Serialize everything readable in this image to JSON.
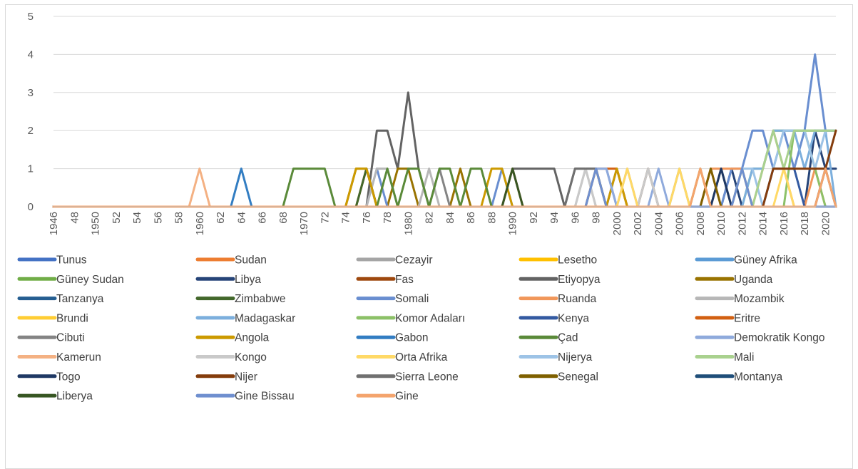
{
  "chart_data": {
    "type": "line",
    "title": "",
    "xlabel": "",
    "ylabel": "",
    "ylim": [
      0,
      5
    ],
    "yticks": [
      "0",
      "1",
      "2",
      "3",
      "4",
      "5"
    ],
    "grid": "horizontal",
    "legend_position": "bottom",
    "x_tick_labels": [
      "1946",
      "48",
      "1950",
      "52",
      "54",
      "56",
      "58",
      "1960",
      "62",
      "64",
      "66",
      "68",
      "1970",
      "72",
      "74",
      "76",
      "78",
      "1980",
      "82",
      "84",
      "86",
      "88",
      "1990",
      "92",
      "94",
      "96",
      "98",
      "2000",
      "2002",
      "2004",
      "2006",
      "2008",
      "2010",
      "2012",
      "2014",
      "2016",
      "2018",
      "2020"
    ],
    "x_years_start": 1946,
    "x_years_end": 2021,
    "series": [
      {
        "name": "Tunus",
        "color": "#4472c4",
        "points": []
      },
      {
        "name": "Sudan",
        "color": "#ed7d31",
        "points": [
          [
            2002,
            0
          ],
          [
            2003,
            1
          ],
          [
            2004,
            0
          ],
          [
            2008,
            0
          ],
          [
            2009,
            1
          ],
          [
            2012,
            1
          ],
          [
            2013,
            0
          ]
        ]
      },
      {
        "name": "Cezayir",
        "color": "#a5a5a5",
        "points": [
          [
            1989,
            0
          ],
          [
            1990,
            1
          ],
          [
            1991,
            0
          ],
          [
            1997,
            0
          ],
          [
            1998,
            1
          ],
          [
            2001,
            1
          ],
          [
            2002,
            0
          ]
        ]
      },
      {
        "name": "Lesetho",
        "color": "#ffc000",
        "points": [
          [
            1997,
            0
          ],
          [
            1998,
            1
          ],
          [
            1999,
            0
          ]
        ]
      },
      {
        "name": "Güney Afrika",
        "color": "#5b9bd5",
        "points": []
      },
      {
        "name": "Güney Sudan",
        "color": "#70ad47",
        "points": [
          [
            2012,
            0
          ],
          [
            2013,
            1
          ],
          [
            2014,
            1
          ],
          [
            2015,
            2
          ],
          [
            2016,
            2
          ],
          [
            2017,
            2
          ],
          [
            2018,
            2
          ],
          [
            2019,
            2
          ],
          [
            2020,
            2
          ],
          [
            2021,
            2
          ]
        ]
      },
      {
        "name": "Libya",
        "color": "#264478",
        "points": [
          [
            2010,
            0
          ],
          [
            2011,
            1
          ],
          [
            2012,
            0
          ],
          [
            2018,
            0
          ],
          [
            2019,
            2
          ],
          [
            2020,
            1
          ],
          [
            2021,
            1
          ]
        ]
      },
      {
        "name": "Fas",
        "color": "#9e480e",
        "points": [
          [
            1975,
            0
          ],
          [
            1976,
            1
          ],
          [
            1977,
            0
          ]
        ]
      },
      {
        "name": "Etiyopya",
        "color": "#636363",
        "points": [
          [
            1976,
            0
          ],
          [
            1977,
            2
          ],
          [
            1978,
            2
          ],
          [
            1979,
            1
          ],
          [
            1980,
            3
          ],
          [
            1981,
            1
          ],
          [
            1990,
            1
          ],
          [
            1991,
            1
          ],
          [
            1992,
            1
          ],
          [
            1993,
            1
          ],
          [
            1994,
            1
          ],
          [
            1995,
            0
          ],
          [
            1996,
            1
          ],
          [
            1997,
            1
          ],
          [
            1998,
            1
          ],
          [
            2000,
            1
          ],
          [
            2001,
            0
          ],
          [
            2019,
            0
          ],
          [
            2020,
            1
          ],
          [
            2021,
            0
          ]
        ]
      },
      {
        "name": "Uganda",
        "color": "#997300",
        "points": [
          [
            1974,
            0
          ],
          [
            1975,
            1
          ],
          [
            1976,
            1
          ],
          [
            1979,
            1
          ],
          [
            1980,
            1
          ],
          [
            1985,
            1
          ],
          [
            1986,
            0
          ],
          [
            2007,
            0
          ],
          [
            2008,
            1
          ],
          [
            2010,
            1
          ],
          [
            2011,
            0
          ]
        ]
      },
      {
        "name": "Tanzanya",
        "color": "#255e91",
        "points": []
      },
      {
        "name": "Zimbabwe",
        "color": "#43682b",
        "points": [
          [
            1975,
            0
          ],
          [
            1976,
            1
          ],
          [
            1977,
            0
          ]
        ]
      },
      {
        "name": "Somali",
        "color": "#698ed0",
        "points": [
          [
            1976,
            0
          ],
          [
            1977,
            1
          ],
          [
            1978,
            0
          ],
          [
            1988,
            0
          ],
          [
            1989,
            1
          ],
          [
            1990,
            0
          ],
          [
            1997,
            0
          ],
          [
            1998,
            1
          ],
          [
            1999,
            1
          ],
          [
            2000,
            0
          ],
          [
            2010,
            0
          ],
          [
            2011,
            1
          ],
          [
            2012,
            1
          ],
          [
            2013,
            2
          ],
          [
            2014,
            2
          ],
          [
            2015,
            1
          ],
          [
            2016,
            2
          ],
          [
            2017,
            1
          ],
          [
            2018,
            2
          ],
          [
            2019,
            4
          ],
          [
            2020,
            2
          ],
          [
            2021,
            2
          ]
        ]
      },
      {
        "name": "Ruanda",
        "color": "#f1975a",
        "points": [
          [
            1989,
            0
          ],
          [
            1990,
            1
          ],
          [
            1991,
            0
          ],
          [
            2008,
            0
          ],
          [
            2009,
            1
          ],
          [
            2010,
            1
          ],
          [
            2011,
            1
          ],
          [
            2012,
            1
          ],
          [
            2013,
            0
          ],
          [
            2014,
            1
          ],
          [
            2015,
            2
          ],
          [
            2016,
            1
          ],
          [
            2017,
            0
          ],
          [
            2019,
            1
          ],
          [
            2020,
            0
          ]
        ]
      },
      {
        "name": "Mozambik",
        "color": "#b7b7b7",
        "points": [
          [
            1976,
            0
          ],
          [
            1977,
            1
          ],
          [
            1978,
            1
          ],
          [
            1982,
            1
          ],
          [
            1983,
            0
          ],
          [
            1996,
            0
          ],
          [
            1997,
            1
          ],
          [
            1998,
            0
          ]
        ]
      },
      {
        "name": "Brundi",
        "color": "#ffcd33",
        "points": [
          [
            1997,
            0
          ],
          [
            1998,
            1
          ],
          [
            1999,
            0
          ],
          [
            2005,
            0
          ],
          [
            2006,
            1
          ],
          [
            2007,
            0
          ]
        ]
      },
      {
        "name": "Madagaskar",
        "color": "#7cafdd",
        "points": [
          [
            2012,
            0
          ],
          [
            2013,
            1
          ],
          [
            2014,
            1
          ],
          [
            2015,
            2
          ],
          [
            2016,
            2
          ],
          [
            2017,
            2
          ],
          [
            2018,
            1
          ],
          [
            2019,
            2
          ],
          [
            2020,
            2
          ]
        ]
      },
      {
        "name": "Komor Adaları",
        "color": "#8cc168",
        "points": [
          [
            2016,
            0
          ],
          [
            2017,
            2
          ],
          [
            2018,
            2
          ],
          [
            2019,
            1
          ]
        ]
      },
      {
        "name": "Kenya",
        "color": "#335aa1",
        "points": [
          [
            2014,
            0
          ],
          [
            2015,
            1
          ],
          [
            2016,
            1
          ],
          [
            2017,
            1
          ]
        ]
      },
      {
        "name": "Eritre",
        "color": "#d26012",
        "points": [
          [
            1997,
            0
          ],
          [
            1998,
            1
          ],
          [
            1999,
            1
          ],
          [
            2000,
            1
          ],
          [
            2001,
            0
          ]
        ]
      },
      {
        "name": "Cibuti",
        "color": "#848484",
        "points": [
          [
            1982,
            0
          ],
          [
            1983,
            1
          ],
          [
            1984,
            0
          ],
          [
            2002,
            0
          ],
          [
            2003,
            1
          ],
          [
            2004,
            0
          ],
          [
            2019,
            0
          ],
          [
            2020,
            1
          ],
          [
            2021,
            0
          ]
        ]
      },
      {
        "name": "Angola",
        "color": "#cc9a00",
        "points": [
          [
            1974,
            0
          ],
          [
            1975,
            1
          ],
          [
            1976,
            1
          ],
          [
            1988,
            1
          ],
          [
            1989,
            1
          ],
          [
            1990,
            0
          ],
          [
            1999,
            0
          ],
          [
            2000,
            1
          ],
          [
            2001,
            0
          ]
        ]
      },
      {
        "name": "Gabon",
        "color": "#327dc2",
        "points": [
          [
            1963,
            0
          ],
          [
            1964,
            1
          ],
          [
            1965,
            0
          ]
        ]
      },
      {
        "name": "Çad",
        "color": "#5a8a39",
        "points": [
          [
            1968,
            0
          ],
          [
            1969,
            1
          ],
          [
            1970,
            1
          ],
          [
            1971,
            1
          ],
          [
            1972,
            1
          ],
          [
            1973,
            0
          ],
          [
            1977,
            0
          ],
          [
            1978,
            1
          ],
          [
            1979,
            0
          ],
          [
            1980,
            1
          ],
          [
            1981,
            1
          ],
          [
            1982,
            0
          ],
          [
            1983,
            1
          ],
          [
            1984,
            1
          ],
          [
            1985,
            0
          ],
          [
            1986,
            1
          ],
          [
            1987,
            1
          ],
          [
            1988,
            0
          ]
        ]
      },
      {
        "name": "Demokratik  Kongo",
        "color": "#8faadc",
        "points": [
          [
            1997,
            0
          ],
          [
            1998,
            1
          ],
          [
            1999,
            1
          ],
          [
            2000,
            0
          ],
          [
            2003,
            0
          ],
          [
            2004,
            1
          ],
          [
            2005,
            0
          ],
          [
            2006,
            1
          ],
          [
            2010,
            1
          ],
          [
            2011,
            0
          ]
        ]
      },
      {
        "name": "Kamerun",
        "color": "#f4b183",
        "points": [
          [
            1959,
            0
          ],
          [
            1960,
            1
          ],
          [
            1961,
            0
          ]
        ]
      },
      {
        "name": "Kongo",
        "color": "#c9c9c9",
        "points": [
          [
            1996,
            0
          ],
          [
            1997,
            1
          ],
          [
            1998,
            0
          ],
          [
            2002,
            0
          ],
          [
            2003,
            1
          ],
          [
            2004,
            0
          ]
        ]
      },
      {
        "name": "Orta Afrika",
        "color": "#ffd966",
        "points": [
          [
            2000,
            0
          ],
          [
            2001,
            1
          ],
          [
            2002,
            0
          ],
          [
            2005,
            0
          ],
          [
            2006,
            1
          ],
          [
            2007,
            0
          ],
          [
            2015,
            0
          ],
          [
            2016,
            1
          ],
          [
            2017,
            0
          ]
        ]
      },
      {
        "name": "Nijerya",
        "color": "#9dc3e6",
        "points": [
          [
            2011,
            0
          ],
          [
            2012,
            1
          ],
          [
            2013,
            1
          ],
          [
            2015,
            1
          ],
          [
            2016,
            2
          ],
          [
            2017,
            2
          ],
          [
            2018,
            2
          ],
          [
            2019,
            1
          ],
          [
            2020,
            2
          ],
          [
            2021,
            2
          ]
        ]
      },
      {
        "name": "Mali",
        "color": "#a9d18e",
        "points": [
          [
            2011,
            0
          ],
          [
            2012,
            1
          ],
          [
            2014,
            1
          ],
          [
            2015,
            2
          ],
          [
            2016,
            1
          ],
          [
            2017,
            2
          ],
          [
            2018,
            2
          ],
          [
            2019,
            2
          ],
          [
            2020,
            2
          ],
          [
            2021,
            2
          ]
        ]
      },
      {
        "name": "Togo",
        "color": "#1f3864",
        "points": [
          [
            2009,
            0
          ],
          [
            2010,
            1
          ],
          [
            2011,
            0
          ]
        ]
      },
      {
        "name": "Nijer",
        "color": "#843c0c",
        "points": [
          [
            2014,
            0
          ],
          [
            2015,
            1
          ],
          [
            2016,
            1
          ],
          [
            2017,
            1
          ],
          [
            2018,
            1
          ],
          [
            2019,
            1
          ],
          [
            2020,
            1
          ],
          [
            2021,
            2
          ]
        ]
      },
      {
        "name": "Sierra Leone",
        "color": "#707070",
        "points": [
          [
            1995,
            0
          ],
          [
            1996,
            1
          ],
          [
            1997,
            1
          ],
          [
            1998,
            1
          ],
          [
            1999,
            0
          ]
        ]
      },
      {
        "name": "Senegal",
        "color": "#7f6000",
        "points": [
          [
            2008,
            0
          ],
          [
            2009,
            1
          ],
          [
            2010,
            0
          ]
        ]
      },
      {
        "name": "Montanya",
        "color": "#1f4e79",
        "points": []
      },
      {
        "name": "Liberya",
        "color": "#375623",
        "points": [
          [
            1989,
            0
          ],
          [
            1990,
            1
          ],
          [
            1991,
            0
          ]
        ]
      },
      {
        "name": "Gine Bissau",
        "color": "#6f8fcf",
        "points": [
          [
            1997,
            0
          ],
          [
            1998,
            1
          ],
          [
            1999,
            0
          ],
          [
            2011,
            0
          ],
          [
            2012,
            1
          ],
          [
            2013,
            0
          ]
        ]
      },
      {
        "name": "Gine",
        "color": "#f4a46d",
        "points": [
          [
            2007,
            0
          ],
          [
            2008,
            1
          ],
          [
            2009,
            0
          ],
          [
            2019,
            0
          ],
          [
            2020,
            1
          ],
          [
            2021,
            0
          ]
        ]
      }
    ]
  }
}
